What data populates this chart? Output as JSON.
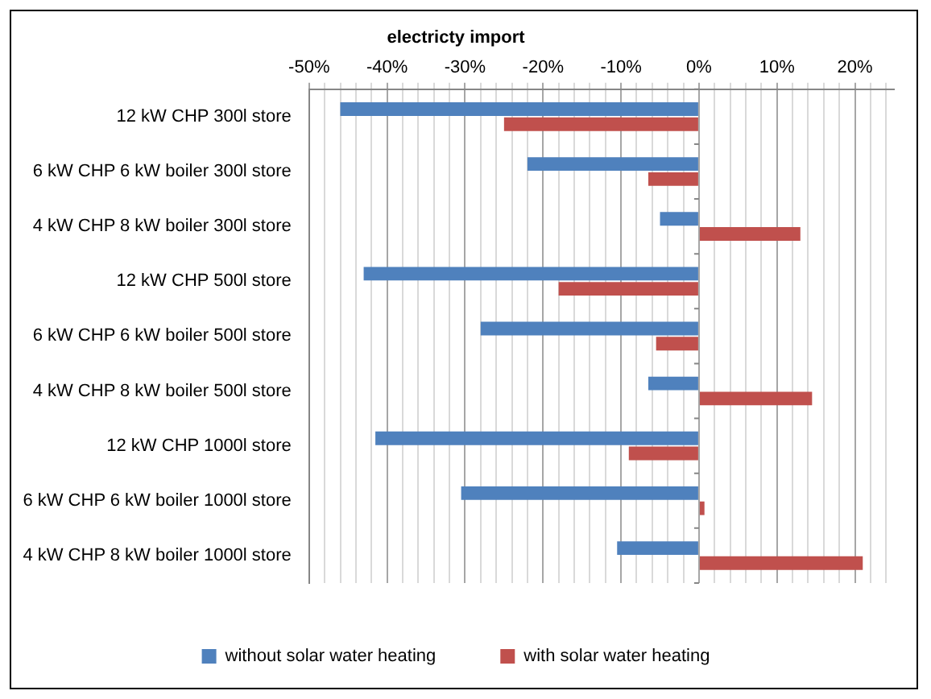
{
  "chart_data": {
    "type": "bar",
    "orientation": "horizontal",
    "title": "electricty import",
    "categories": [
      "12 kW CHP 300l store",
      "6 kW CHP 6 kW boiler 300l store",
      "4 kW CHP 8 kW boiler 300l store",
      "12 kW CHP 500l store",
      "6 kW CHP 6 kW boiler 500l store",
      "4 kW CHP 8 kW boiler 500l store",
      "12 kW CHP 1000l store",
      "6 kW CHP 6 kW boiler 1000l store",
      "4 kW CHP 8 kW boiler 1000l store"
    ],
    "series": [
      {
        "name": "without solar water heating",
        "color": "#4f81bd",
        "values": [
          -46,
          -22,
          -5,
          -43,
          -28,
          -6.5,
          -41.5,
          -30.5,
          -10.5
        ]
      },
      {
        "name": "with solar water heating",
        "color": "#c0504d",
        "values": [
          -25,
          -6.5,
          13,
          -18,
          -5.5,
          14.5,
          -9,
          0.7,
          21
        ]
      }
    ],
    "xlim": [
      -50,
      25
    ],
    "xticks": [
      {
        "value": -50,
        "label": "-50%"
      },
      {
        "value": -48,
        "label": null
      },
      {
        "value": -46,
        "label": null
      },
      {
        "value": -44,
        "label": null
      },
      {
        "value": -42,
        "label": null
      },
      {
        "value": -40,
        "label": "-40%"
      },
      {
        "value": -38,
        "label": null
      },
      {
        "value": -36,
        "label": null
      },
      {
        "value": -34,
        "label": null
      },
      {
        "value": -32,
        "label": null
      },
      {
        "value": -30,
        "label": "-30%"
      },
      {
        "value": -28,
        "label": null
      },
      {
        "value": -26,
        "label": null
      },
      {
        "value": -24,
        "label": null
      },
      {
        "value": -22,
        "label": null
      },
      {
        "value": -20,
        "label": "-20%"
      },
      {
        "value": -18,
        "label": null
      },
      {
        "value": -16,
        "label": null
      },
      {
        "value": -14,
        "label": null
      },
      {
        "value": -12,
        "label": null
      },
      {
        "value": -10,
        "label": "-10%"
      },
      {
        "value": -8,
        "label": null
      },
      {
        "value": -6,
        "label": null
      },
      {
        "value": -4,
        "label": null
      },
      {
        "value": -2,
        "label": null
      },
      {
        "value": 0,
        "label": "0%"
      },
      {
        "value": 2,
        "label": null
      },
      {
        "value": 4,
        "label": null
      },
      {
        "value": 6,
        "label": null
      },
      {
        "value": 8,
        "label": null
      },
      {
        "value": 10,
        "label": "10%"
      },
      {
        "value": 12,
        "label": null
      },
      {
        "value": 14,
        "label": null
      },
      {
        "value": 16,
        "label": null
      },
      {
        "value": 18,
        "label": null
      },
      {
        "value": 20,
        "label": "20%"
      },
      {
        "value": 22,
        "label": null
      },
      {
        "value": 24,
        "label": null
      }
    ],
    "grid": "x",
    "legend": "bottom"
  }
}
